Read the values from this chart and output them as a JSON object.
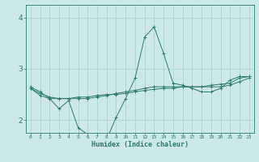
{
  "xlabel": "Humidex (Indice chaleur)",
  "bg_color": "#cce8e8",
  "line_color": "#2e7d6e",
  "grid_color": "#aacfcf",
  "ylim": [
    1.75,
    4.25
  ],
  "xlim": [
    -0.5,
    23.5
  ],
  "yticks": [
    2,
    3,
    4
  ],
  "xticks": [
    0,
    1,
    2,
    3,
    4,
    5,
    6,
    7,
    8,
    9,
    10,
    11,
    12,
    13,
    14,
    15,
    16,
    17,
    18,
    19,
    20,
    21,
    22,
    23
  ],
  "series": [
    [
      2.65,
      2.55,
      2.42,
      2.22,
      2.38,
      1.85,
      1.72,
      1.62,
      1.62,
      2.05,
      2.42,
      2.82,
      3.62,
      3.82,
      3.3,
      2.72,
      2.68,
      2.62,
      2.55,
      2.55,
      2.62,
      2.78,
      2.85,
      2.85
    ],
    [
      2.62,
      2.48,
      2.42,
      2.42,
      2.42,
      2.45,
      2.45,
      2.48,
      2.5,
      2.5,
      2.52,
      2.55,
      2.58,
      2.6,
      2.62,
      2.62,
      2.65,
      2.65,
      2.65,
      2.68,
      2.7,
      2.72,
      2.82,
      2.85
    ],
    [
      2.62,
      2.52,
      2.45,
      2.42,
      2.42,
      2.42,
      2.42,
      2.45,
      2.48,
      2.52,
      2.55,
      2.58,
      2.62,
      2.65,
      2.65,
      2.65,
      2.65,
      2.65,
      2.65,
      2.65,
      2.65,
      2.68,
      2.75,
      2.82
    ]
  ]
}
